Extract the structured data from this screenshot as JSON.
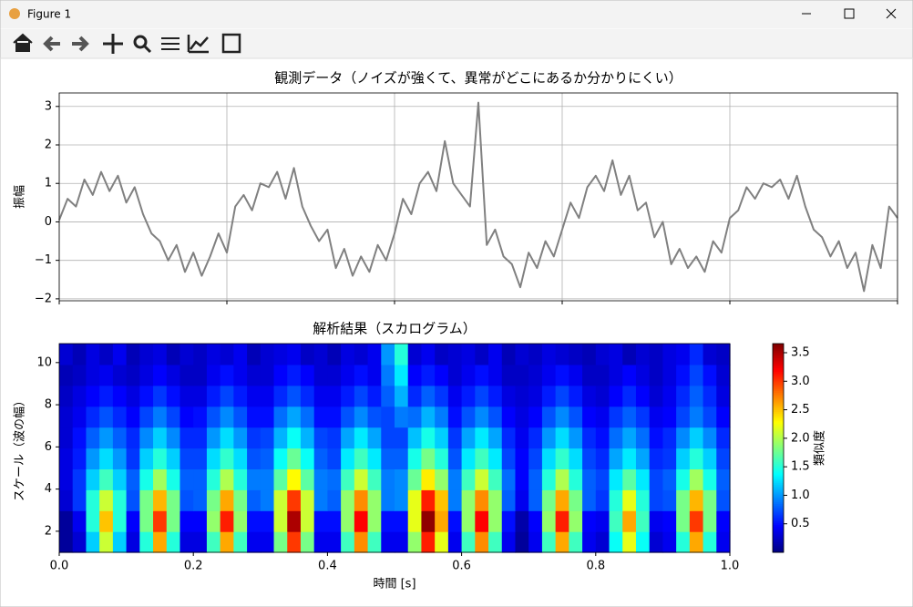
{
  "window": {
    "title": "Figure 1"
  },
  "chart_data": [
    {
      "type": "line",
      "title": "観測データ（ノイズが強くて、異常がどこにあるか分かりにくい）",
      "y_label": "振幅",
      "x": [
        0,
        0.01,
        0.02,
        0.03,
        0.04,
        0.05,
        0.06,
        0.07,
        0.08,
        0.09,
        0.1,
        0.11,
        0.12,
        0.13,
        0.14,
        0.15,
        0.16,
        0.17,
        0.18,
        0.19,
        0.2,
        0.21,
        0.22,
        0.23,
        0.24,
        0.25,
        0.26,
        0.27,
        0.28,
        0.29,
        0.3,
        0.31,
        0.32,
        0.33,
        0.34,
        0.35,
        0.36,
        0.37,
        0.38,
        0.39,
        0.4,
        0.41,
        0.42,
        0.43,
        0.44,
        0.45,
        0.46,
        0.47,
        0.48,
        0.49,
        0.5,
        0.51,
        0.52,
        0.53,
        0.54,
        0.55,
        0.56,
        0.57,
        0.58,
        0.59,
        0.6,
        0.61,
        0.62,
        0.63,
        0.64,
        0.65,
        0.66,
        0.67,
        0.68,
        0.69,
        0.7,
        0.71,
        0.72,
        0.73,
        0.74,
        0.75,
        0.76,
        0.77,
        0.78,
        0.79,
        0.8,
        0.81,
        0.82,
        0.83,
        0.84,
        0.85,
        0.86,
        0.87,
        0.88,
        0.89,
        0.9,
        0.91,
        0.92,
        0.93,
        0.94,
        0.95,
        0.96,
        0.97,
        0.98,
        0.99,
        1
      ],
      "values": [
        0.05,
        0.6,
        0.4,
        1.1,
        0.7,
        1.3,
        0.8,
        1.2,
        0.5,
        0.9,
        0.2,
        -0.3,
        -0.5,
        -1.0,
        -0.6,
        -1.3,
        -0.8,
        -1.4,
        -0.9,
        -0.3,
        -0.8,
        0.4,
        0.7,
        0.3,
        1.0,
        0.9,
        1.3,
        0.6,
        1.4,
        0.4,
        -0.1,
        -0.5,
        -0.2,
        -1.2,
        -0.7,
        -1.4,
        -0.9,
        -1.3,
        -0.6,
        -1.0,
        -0.3,
        0.6,
        0.2,
        1.0,
        1.3,
        0.8,
        2.1,
        1.0,
        0.7,
        0.4,
        3.1,
        -0.6,
        -0.2,
        -0.9,
        -1.1,
        -1.7,
        -0.8,
        -1.2,
        -0.5,
        -0.9,
        -0.2,
        0.5,
        0.1,
        0.9,
        1.2,
        0.8,
        1.6,
        0.7,
        1.2,
        0.3,
        0.5,
        -0.4,
        0.0,
        -1.1,
        -0.7,
        -1.2,
        -0.9,
        -1.3,
        -0.5,
        -0.8,
        0.1,
        0.3,
        0.9,
        0.6,
        1.0,
        0.9,
        1.1,
        0.6,
        1.2,
        0.4,
        -0.2,
        -0.4,
        -0.9,
        -0.5,
        -1.2,
        -0.8,
        -1.8,
        -0.6,
        -1.2,
        0.4,
        0.1
      ],
      "color": "#808080",
      "xlim": [
        0,
        1
      ],
      "xticks": [
        0,
        0.2,
        0.4,
        0.6,
        0.8,
        1
      ],
      "ylim": [
        -2.05,
        3.35
      ],
      "yticks": [
        {
          "value": -2,
          "label": "−2"
        },
        {
          "value": -1,
          "label": "−1"
        },
        0,
        1,
        2,
        3
      ],
      "grid": true
    },
    {
      "type": "heatmap",
      "title": "解析結果（スカログラム）",
      "x_label": "時間 [s]",
      "y_label": "スケール（波の幅）",
      "colormap": "jet",
      "colorbar_label": "類似度",
      "xlim": [
        0,
        1
      ],
      "xticks": [
        {
          "value": 0,
          "label": "0.0"
        },
        0.2,
        0.4,
        0.6,
        0.8,
        {
          "value": 1,
          "label": "1.0"
        }
      ],
      "ylim": [
        1,
        10.9
      ],
      "yticks": [
        2,
        4,
        6,
        8,
        10
      ],
      "zlim": [
        0,
        3.66
      ],
      "zticks": [
        0.5,
        {
          "value": 1,
          "label": "1.0"
        },
        1.5,
        {
          "value": 2,
          "label": "2.0"
        },
        2.5,
        {
          "value": 3,
          "label": "3.0"
        },
        3.5
      ],
      "z": [
        [
          0.1,
          0.3,
          1.2,
          2.1,
          1.2,
          0.35,
          1.5,
          2.6,
          1.5,
          0.35,
          0.35,
          1.6,
          2.6,
          1.6,
          0.4,
          0.4,
          1.8,
          3.0,
          1.8,
          0.4,
          0.4,
          1.6,
          2.7,
          1.6,
          0.4,
          0.4,
          1.9,
          3.1,
          2.2,
          0.4,
          1.6,
          2.7,
          1.6,
          0.4,
          0.1,
          0.4,
          1.6,
          2.6,
          1.6,
          0.4,
          0.3,
          1.4,
          2.2,
          1.4,
          0.3,
          0.4,
          1.5,
          2.6,
          1.5,
          0.4
        ],
        [
          0.1,
          0.4,
          1.5,
          2.5,
          1.5,
          0.45,
          1.8,
          3.0,
          1.8,
          0.45,
          0.45,
          1.9,
          3.1,
          1.9,
          0.5,
          0.5,
          2.1,
          3.5,
          2.1,
          0.5,
          0.5,
          1.9,
          3.2,
          1.9,
          0.5,
          0.5,
          2.2,
          3.6,
          2.6,
          0.5,
          1.9,
          3.2,
          1.9,
          0.5,
          0.15,
          0.45,
          1.9,
          3.1,
          1.9,
          0.45,
          0.4,
          1.6,
          2.6,
          1.6,
          0.4,
          0.45,
          1.8,
          3.0,
          1.8,
          0.45
        ],
        [
          0.3,
          0.65,
          1.5,
          2.1,
          1.5,
          0.75,
          1.8,
          2.55,
          1.8,
          0.75,
          0.8,
          1.8,
          2.6,
          1.8,
          0.8,
          0.9,
          2.1,
          3.0,
          2.1,
          0.9,
          0.8,
          1.9,
          2.7,
          1.9,
          0.9,
          0.95,
          2.2,
          3.1,
          2.5,
          0.9,
          1.9,
          2.7,
          1.9,
          0.8,
          0.4,
          0.8,
          1.8,
          2.6,
          1.8,
          0.8,
          0.65,
          1.5,
          2.2,
          1.5,
          0.7,
          0.75,
          1.8,
          2.55,
          1.8,
          0.75
        ],
        [
          0.35,
          0.65,
          1.2,
          1.6,
          1.2,
          0.8,
          1.45,
          1.95,
          1.45,
          0.8,
          0.8,
          1.5,
          2.0,
          1.5,
          0.9,
          0.9,
          1.7,
          2.3,
          1.7,
          0.9,
          0.85,
          1.6,
          2.1,
          1.6,
          0.9,
          0.95,
          1.75,
          2.35,
          1.9,
          0.9,
          1.6,
          2.1,
          1.6,
          0.85,
          0.45,
          0.8,
          1.5,
          2.0,
          1.5,
          0.8,
          0.7,
          1.3,
          1.7,
          1.3,
          0.7,
          0.8,
          1.45,
          1.95,
          1.45,
          0.8
        ],
        [
          0.35,
          0.55,
          1.0,
          1.25,
          1.0,
          0.65,
          1.2,
          1.5,
          1.2,
          0.7,
          0.7,
          1.25,
          1.55,
          1.25,
          0.75,
          0.8,
          1.4,
          1.75,
          1.4,
          0.8,
          0.7,
          1.3,
          1.6,
          1.3,
          0.8,
          0.8,
          1.45,
          1.8,
          1.5,
          0.75,
          1.3,
          1.6,
          1.3,
          0.7,
          0.45,
          0.7,
          1.25,
          1.55,
          1.25,
          0.7,
          0.6,
          1.05,
          1.3,
          1.05,
          0.6,
          0.65,
          1.2,
          1.5,
          1.2,
          0.7
        ],
        [
          0.3,
          0.5,
          0.8,
          1.0,
          0.8,
          0.6,
          0.95,
          1.2,
          0.95,
          0.6,
          0.6,
          1.0,
          1.25,
          1.0,
          0.65,
          0.7,
          1.1,
          1.4,
          1.1,
          0.7,
          0.65,
          1.05,
          1.3,
          1.05,
          0.7,
          0.7,
          1.15,
          1.45,
          1.2,
          0.65,
          1.05,
          1.3,
          1.05,
          0.6,
          0.4,
          0.6,
          1.0,
          1.25,
          1.0,
          0.6,
          0.5,
          0.85,
          1.05,
          0.85,
          0.5,
          0.6,
          0.95,
          1.2,
          0.95,
          0.6
        ],
        [
          0.3,
          0.4,
          0.6,
          0.75,
          0.6,
          0.45,
          0.7,
          0.9,
          0.7,
          0.45,
          0.5,
          0.75,
          0.95,
          0.75,
          0.5,
          0.5,
          0.85,
          1.05,
          0.85,
          0.5,
          0.5,
          0.75,
          0.95,
          0.75,
          0.7,
          0.9,
          0.85,
          1.1,
          0.9,
          0.5,
          0.75,
          0.95,
          0.75,
          0.45,
          0.35,
          0.45,
          0.75,
          0.95,
          0.75,
          0.45,
          0.4,
          0.65,
          0.8,
          0.65,
          0.4,
          0.45,
          0.7,
          0.9,
          0.7,
          0.45
        ],
        [
          0.25,
          0.35,
          0.45,
          0.55,
          0.45,
          0.35,
          0.5,
          0.65,
          0.5,
          0.35,
          0.35,
          0.55,
          0.7,
          0.55,
          0.4,
          0.4,
          0.6,
          0.75,
          0.6,
          0.4,
          0.4,
          0.55,
          0.7,
          0.55,
          0.8,
          1.1,
          0.6,
          0.8,
          0.65,
          0.4,
          0.55,
          0.7,
          0.55,
          0.35,
          0.3,
          0.35,
          0.55,
          0.7,
          0.55,
          0.35,
          0.3,
          0.45,
          0.6,
          0.45,
          0.3,
          0.4,
          0.6,
          0.8,
          0.6,
          0.35
        ],
        [
          0.2,
          0.25,
          0.35,
          0.4,
          0.3,
          0.25,
          0.35,
          0.45,
          0.35,
          0.25,
          0.25,
          0.4,
          0.5,
          0.4,
          0.3,
          0.3,
          0.45,
          0.55,
          0.45,
          0.3,
          0.3,
          0.4,
          0.5,
          0.4,
          0.9,
          1.3,
          0.45,
          0.55,
          0.45,
          0.3,
          0.4,
          0.5,
          0.4,
          0.25,
          0.25,
          0.3,
          0.4,
          0.5,
          0.4,
          0.25,
          0.25,
          0.35,
          0.45,
          0.35,
          0.25,
          0.35,
          0.5,
          0.7,
          0.5,
          0.3
        ],
        [
          0.3,
          0.2,
          0.35,
          0.25,
          0.4,
          0.2,
          0.3,
          0.35,
          0.2,
          0.3,
          0.25,
          0.35,
          0.3,
          0.4,
          0.2,
          0.3,
          0.35,
          0.4,
          0.25,
          0.3,
          0.2,
          0.35,
          0.3,
          0.4,
          1.0,
          1.5,
          0.3,
          0.4,
          0.25,
          0.3,
          0.35,
          0.25,
          0.4,
          0.2,
          0.3,
          0.25,
          0.35,
          0.3,
          0.25,
          0.2,
          0.3,
          0.35,
          0.2,
          0.3,
          0.25,
          0.35,
          0.4,
          0.6,
          0.3,
          0.25
        ]
      ]
    }
  ]
}
